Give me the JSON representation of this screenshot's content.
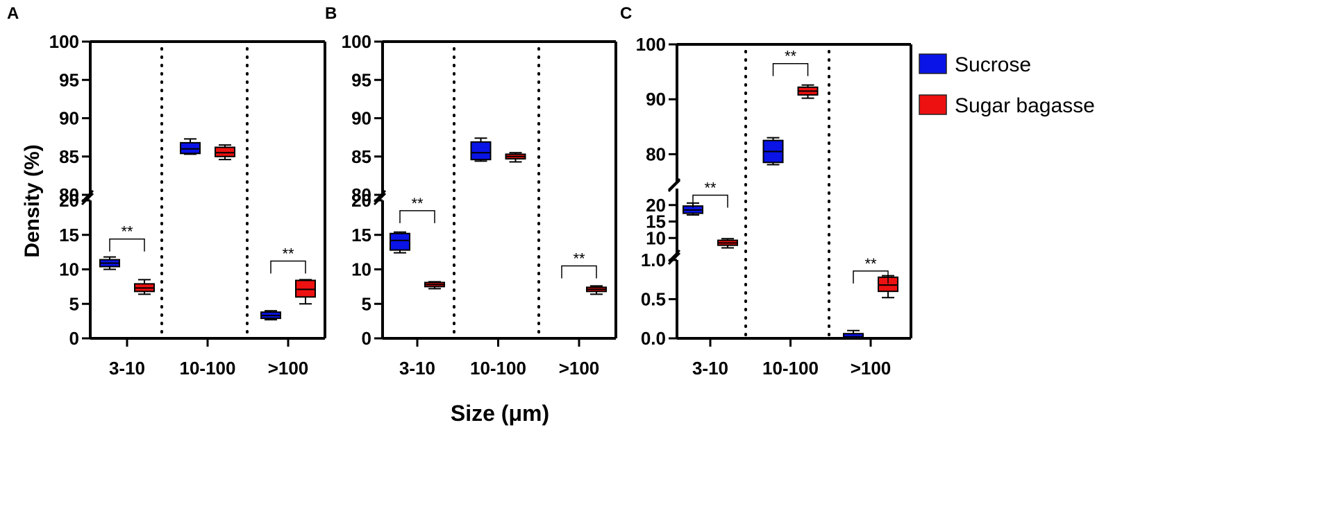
{
  "chart_data": {
    "ylabel": "Density (%)",
    "xlabel": "Size (μm)",
    "legend": [
      {
        "name": "Sucrose",
        "color": "#0a14e6"
      },
      {
        "name": "Sugar bagasse",
        "color": "#ee1111"
      }
    ],
    "panels": [
      {
        "label": "A",
        "type": "box",
        "categories": [
          "3-10",
          "10-100",
          ">100"
        ],
        "y_segments": [
          {
            "range": [
              0,
              20
            ],
            "ticks": [
              0,
              5,
              10,
              15,
              20
            ]
          },
          {
            "range": [
              80,
              100
            ],
            "ticks": [
              80,
              85,
              90,
              95,
              100
            ]
          }
        ],
        "series": [
          {
            "name": "Sucrose",
            "boxes": [
              {
                "category": "3-10",
                "min": 10.0,
                "q1": 10.4,
                "median": 10.9,
                "q3": 11.4,
                "max": 11.8
              },
              {
                "category": "10-100",
                "min": 85.3,
                "q1": 85.4,
                "median": 86.0,
                "q3": 86.8,
                "max": 87.3
              },
              {
                "category": ">100",
                "min": 2.7,
                "q1": 2.9,
                "median": 3.3,
                "q3": 3.8,
                "max": 4.0
              }
            ]
          },
          {
            "name": "Sugar bagasse",
            "boxes": [
              {
                "category": "3-10",
                "min": 6.4,
                "q1": 6.8,
                "median": 7.3,
                "q3": 7.9,
                "max": 8.5
              },
              {
                "category": "10-100",
                "min": 84.6,
                "q1": 85.0,
                "median": 85.5,
                "q3": 86.2,
                "max": 86.5
              },
              {
                "category": ">100",
                "min": 5.0,
                "q1": 6.0,
                "median": 7.1,
                "q3": 8.4,
                "max": 8.5
              }
            ]
          }
        ],
        "significance": [
          {
            "category": "3-10",
            "label": "**",
            "y": 14.4
          },
          {
            "category": ">100",
            "label": "**",
            "y": 11.2
          }
        ]
      },
      {
        "label": "B",
        "type": "box",
        "categories": [
          "3-10",
          "10-100",
          ">100"
        ],
        "y_segments": [
          {
            "range": [
              0,
              20
            ],
            "ticks": [
              0,
              5,
              10,
              15,
              20
            ]
          },
          {
            "range": [
              80,
              100
            ],
            "ticks": [
              80,
              85,
              90,
              95,
              100
            ]
          }
        ],
        "series": [
          {
            "name": "Sucrose",
            "boxes": [
              {
                "category": "3-10",
                "min": 12.4,
                "q1": 12.8,
                "median": 14.2,
                "q3": 15.2,
                "max": 15.4
              },
              {
                "category": "10-100",
                "min": 84.4,
                "q1": 84.6,
                "median": 85.5,
                "q3": 86.9,
                "max": 87.4
              },
              {
                "category": ">100",
                "min": 0,
                "q1": 0,
                "median": 0,
                "q3": 0,
                "max": 0
              }
            ]
          },
          {
            "name": "Sugar bagasse",
            "boxes": [
              {
                "category": "3-10",
                "min": 7.2,
                "q1": 7.5,
                "median": 7.8,
                "q3": 8.1,
                "max": 8.2
              },
              {
                "category": "10-100",
                "min": 84.3,
                "q1": 84.7,
                "median": 85.0,
                "q3": 85.3,
                "max": 85.5
              },
              {
                "category": ">100",
                "min": 6.4,
                "q1": 6.8,
                "median": 7.1,
                "q3": 7.4,
                "max": 7.6
              }
            ]
          }
        ],
        "significance": [
          {
            "category": "3-10",
            "label": "**",
            "y": 18.5
          },
          {
            "category": ">100",
            "label": "**",
            "y": 10.5
          }
        ]
      },
      {
        "label": "C",
        "type": "box",
        "categories": [
          "3-10",
          "10-100",
          ">100"
        ],
        "y_segments": [
          {
            "range": [
              0,
              1
            ],
            "ticks": [
              0.0,
              0.5,
              1.0
            ]
          },
          {
            "range": [
              5,
              25
            ],
            "ticks": [
              10,
              15,
              20
            ]
          },
          {
            "range": [
              75,
              100
            ],
            "ticks": [
              80,
              90,
              100
            ]
          }
        ],
        "series": [
          {
            "name": "Sucrose",
            "boxes": [
              {
                "category": "3-10",
                "min": 17.0,
                "q1": 17.5,
                "median": 18.5,
                "q3": 19.7,
                "max": 20.6
              },
              {
                "category": "10-100",
                "min": 78.1,
                "q1": 78.5,
                "median": 80.5,
                "q3": 82.5,
                "max": 83.0
              },
              {
                "category": ">100",
                "min": 0.0,
                "q1": 0.0,
                "median": 0.02,
                "q3": 0.06,
                "max": 0.1
              }
            ]
          },
          {
            "name": "Sugar bagasse",
            "boxes": [
              {
                "category": "3-10",
                "min": 7.0,
                "q1": 7.8,
                "median": 8.5,
                "q3": 9.3,
                "max": 9.8
              },
              {
                "category": "10-100",
                "min": 90.2,
                "q1": 90.8,
                "median": 91.5,
                "q3": 92.2,
                "max": 92.6
              },
              {
                "category": ">100",
                "min": 0.52,
                "q1": 0.6,
                "median": 0.68,
                "q3": 0.78,
                "max": 0.8
              }
            ]
          }
        ],
        "significance": [
          {
            "category": "3-10",
            "label": "**",
            "y": 23.0
          },
          {
            "category": "10-100",
            "label": "**",
            "y": 96.5
          },
          {
            "category": ">100",
            "label": "**",
            "y": 0.86
          }
        ]
      }
    ]
  }
}
